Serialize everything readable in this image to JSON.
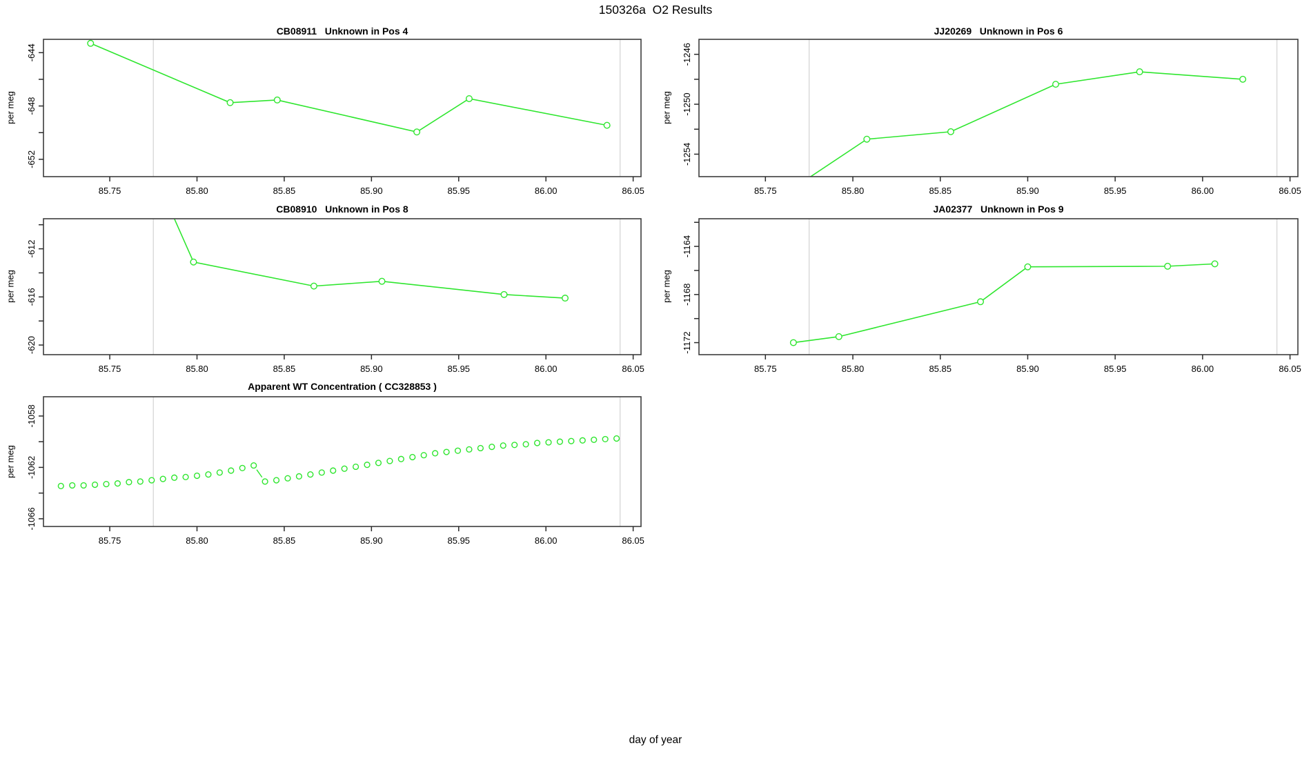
{
  "page": {
    "title": "150326a  O2 Results",
    "xlabel": "day of year",
    "accent_color": "#2ee62e",
    "ref_line_color": "#dadada",
    "border_color": "#3c3c3c"
  },
  "chart_data": [
    {
      "id": "CB08911",
      "title": "CB08911   Unknown in Pos 4",
      "type": "line",
      "ylabel": "per meg",
      "x": [
        85.739,
        85.819,
        85.846,
        85.926,
        85.956,
        86.035
      ],
      "y": [
        -643.3,
        -647.75,
        -647.55,
        -649.95,
        -647.45,
        -649.45
      ],
      "xlim": [
        85.712,
        86.0545
      ],
      "ylim": [
        -653.3,
        -643.0
      ],
      "xticks": [
        85.75,
        85.8,
        85.85,
        85.9,
        85.95,
        86.0,
        86.05
      ],
      "xtick_labels": [
        "85.75",
        "85.80",
        "85.85",
        "85.90",
        "85.95",
        "86.00",
        "86.05"
      ],
      "yticks": [
        -652,
        -650,
        -648,
        -646,
        -644
      ],
      "ytick_labels": [
        "-652",
        "",
        "-648",
        "",
        "-644"
      ],
      "ref_lines_x": [
        85.775,
        86.0425
      ],
      "marker": "open-circle",
      "line_mode": "full"
    },
    {
      "id": "JJ20269",
      "title": "JJ20269   Unknown in Pos 6",
      "type": "line",
      "ylabel": "per meg",
      "x": [
        85.763,
        85.808,
        85.856,
        85.916,
        85.964,
        86.023
      ],
      "y": [
        -1257.0,
        -1252.8,
        -1252.2,
        -1248.4,
        -1247.4,
        -1248.0
      ],
      "xlim": [
        85.712,
        86.0545
      ],
      "ylim": [
        -1255.8,
        -1244.8
      ],
      "xticks": [
        85.75,
        85.8,
        85.85,
        85.9,
        85.95,
        86.0,
        86.05
      ],
      "xtick_labels": [
        "85.75",
        "85.80",
        "85.85",
        "85.90",
        "85.95",
        "86.00",
        "86.05"
      ],
      "yticks": [
        -1254,
        -1252,
        -1250,
        -1248,
        -1246
      ],
      "ytick_labels": [
        "-1254",
        "",
        "-1250",
        "",
        "-1246"
      ],
      "ref_lines_x": [
        85.775,
        86.0425
      ],
      "marker": "open-circle",
      "line_mode": "full"
    },
    {
      "id": "CB08910",
      "title": "CB08910   Unknown in Pos 8",
      "type": "line",
      "ylabel": "per meg",
      "x": [
        85.7855,
        85.798,
        85.867,
        85.906,
        85.976,
        86.011
      ],
      "y": [
        -609.0,
        -613.1,
        -615.1,
        -614.7,
        -615.8,
        -616.1
      ],
      "xlim": [
        85.712,
        86.0545
      ],
      "ylim": [
        -620.8,
        -609.5
      ],
      "xticks": [
        85.75,
        85.8,
        85.85,
        85.9,
        85.95,
        86.0,
        86.05
      ],
      "xtick_labels": [
        "85.75",
        "85.80",
        "85.85",
        "85.90",
        "85.95",
        "86.00",
        "86.05"
      ],
      "yticks": [
        -620,
        -618,
        -616,
        -614,
        -612,
        -610
      ],
      "ytick_labels": [
        "-620",
        "",
        "-616",
        "",
        "-612",
        ""
      ],
      "ref_lines_x": [
        85.775,
        86.0425
      ],
      "marker": "open-circle",
      "line_mode": "full"
    },
    {
      "id": "JA02377",
      "title": "JA02377   Unknown in Pos 9",
      "type": "line",
      "ylabel": "per meg",
      "x": [
        85.766,
        85.792,
        85.873,
        85.9,
        85.98,
        86.007
      ],
      "y": [
        -1172.0,
        -1171.5,
        -1168.6,
        -1165.7,
        -1165.65,
        -1165.45
      ],
      "xlim": [
        85.712,
        86.0545
      ],
      "ylim": [
        -1173.0,
        -1161.7
      ],
      "xticks": [
        85.75,
        85.8,
        85.85,
        85.9,
        85.95,
        86.0,
        86.05
      ],
      "xtick_labels": [
        "85.75",
        "85.80",
        "85.85",
        "85.90",
        "85.95",
        "86.00",
        "86.05"
      ],
      "yticks": [
        -1172,
        -1170,
        -1168,
        -1166,
        -1164,
        -1162
      ],
      "ytick_labels": [
        "-1172",
        "",
        "-1168",
        "",
        "-1164",
        ""
      ],
      "ref_lines_x": [
        85.775,
        86.0425
      ],
      "marker": "open-circle",
      "line_mode": "full"
    },
    {
      "id": "CC328853",
      "title": "Apparent WT Concentration ( CC328853 )",
      "type": "scatter",
      "ylabel": "per meg",
      "x": [
        85.722,
        85.7285,
        85.735,
        85.7415,
        85.748,
        85.7545,
        85.761,
        85.7675,
        85.774,
        85.7805,
        85.787,
        85.7935,
        85.8,
        85.8065,
        85.813,
        85.8195,
        85.826,
        85.8325,
        85.839,
        85.8455,
        85.852,
        85.8585,
        85.865,
        85.8715,
        85.878,
        85.8845,
        85.891,
        85.8975,
        85.904,
        85.9105,
        85.917,
        85.9235,
        85.93,
        85.9365,
        85.943,
        85.9495,
        85.956,
        85.9625,
        85.969,
        85.9755,
        85.982,
        85.9885,
        85.995,
        86.0015,
        86.008,
        86.0145,
        86.021,
        86.0275,
        86.034,
        86.0405
      ],
      "y": [
        -1063.45,
        -1063.4,
        -1063.4,
        -1063.35,
        -1063.3,
        -1063.25,
        -1063.15,
        -1063.1,
        -1063.0,
        -1062.9,
        -1062.8,
        -1062.75,
        -1062.65,
        -1062.55,
        -1062.4,
        -1062.25,
        -1062.05,
        -1061.85,
        -1063.1,
        -1063.0,
        -1062.85,
        -1062.7,
        -1062.55,
        -1062.4,
        -1062.25,
        -1062.1,
        -1061.95,
        -1061.8,
        -1061.65,
        -1061.5,
        -1061.35,
        -1061.2,
        -1061.05,
        -1060.9,
        -1060.8,
        -1060.7,
        -1060.6,
        -1060.5,
        -1060.4,
        -1060.3,
        -1060.25,
        -1060.2,
        -1060.1,
        -1060.05,
        -1060.0,
        -1059.95,
        -1059.9,
        -1059.85,
        -1059.8,
        -1059.75
      ],
      "xlim": [
        85.712,
        86.0545
      ],
      "ylim": [
        -1066.6,
        -1056.5
      ],
      "xticks": [
        85.75,
        85.8,
        85.85,
        85.9,
        85.95,
        86.0,
        86.05
      ],
      "xtick_labels": [
        "85.75",
        "85.80",
        "85.85",
        "85.90",
        "85.95",
        "86.00",
        "86.05"
      ],
      "yticks": [
        -1066,
        -1064,
        -1062,
        -1060,
        -1058
      ],
      "ytick_labels": [
        "-1066",
        "",
        "-1062",
        "",
        "-1058"
      ],
      "ref_lines_x": [
        85.775,
        86.0425
      ],
      "marker": "open-circle",
      "line_mode": "gapped"
    }
  ]
}
